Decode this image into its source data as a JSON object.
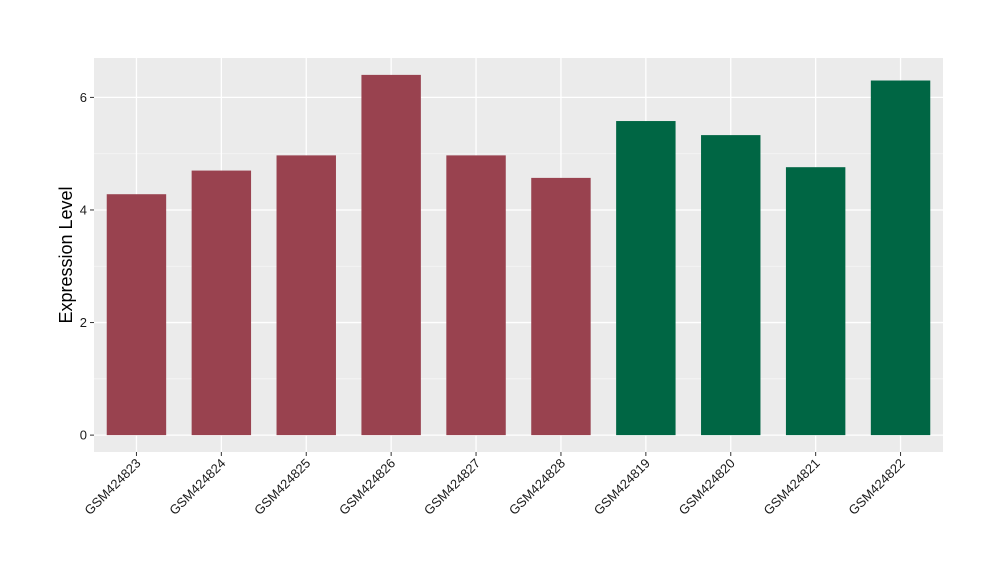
{
  "chart_data": {
    "type": "bar",
    "title": "",
    "xlabel": "",
    "ylabel": "Expression Level",
    "categories": [
      "GSM424823",
      "GSM424824",
      "GSM424825",
      "GSM424826",
      "GSM424827",
      "GSM424828",
      "GSM424819",
      "GSM424820",
      "GSM424821",
      "GSM424822"
    ],
    "values": [
      4.28,
      4.7,
      4.97,
      6.4,
      4.97,
      4.57,
      5.58,
      5.33,
      4.76,
      6.3
    ],
    "groups": [
      0,
      0,
      0,
      0,
      0,
      0,
      1,
      1,
      1,
      1
    ],
    "group_colors": [
      "#99424f",
      "#006644"
    ],
    "ylim": [
      -0.3,
      6.7
    ],
    "yticks": [
      0,
      2,
      4,
      6
    ],
    "grid": true,
    "legend": "none",
    "colors": {
      "panel_background": "#ebebeb",
      "grid_major": "#ffffff",
      "grid_minor": "#f5f5f5"
    }
  }
}
